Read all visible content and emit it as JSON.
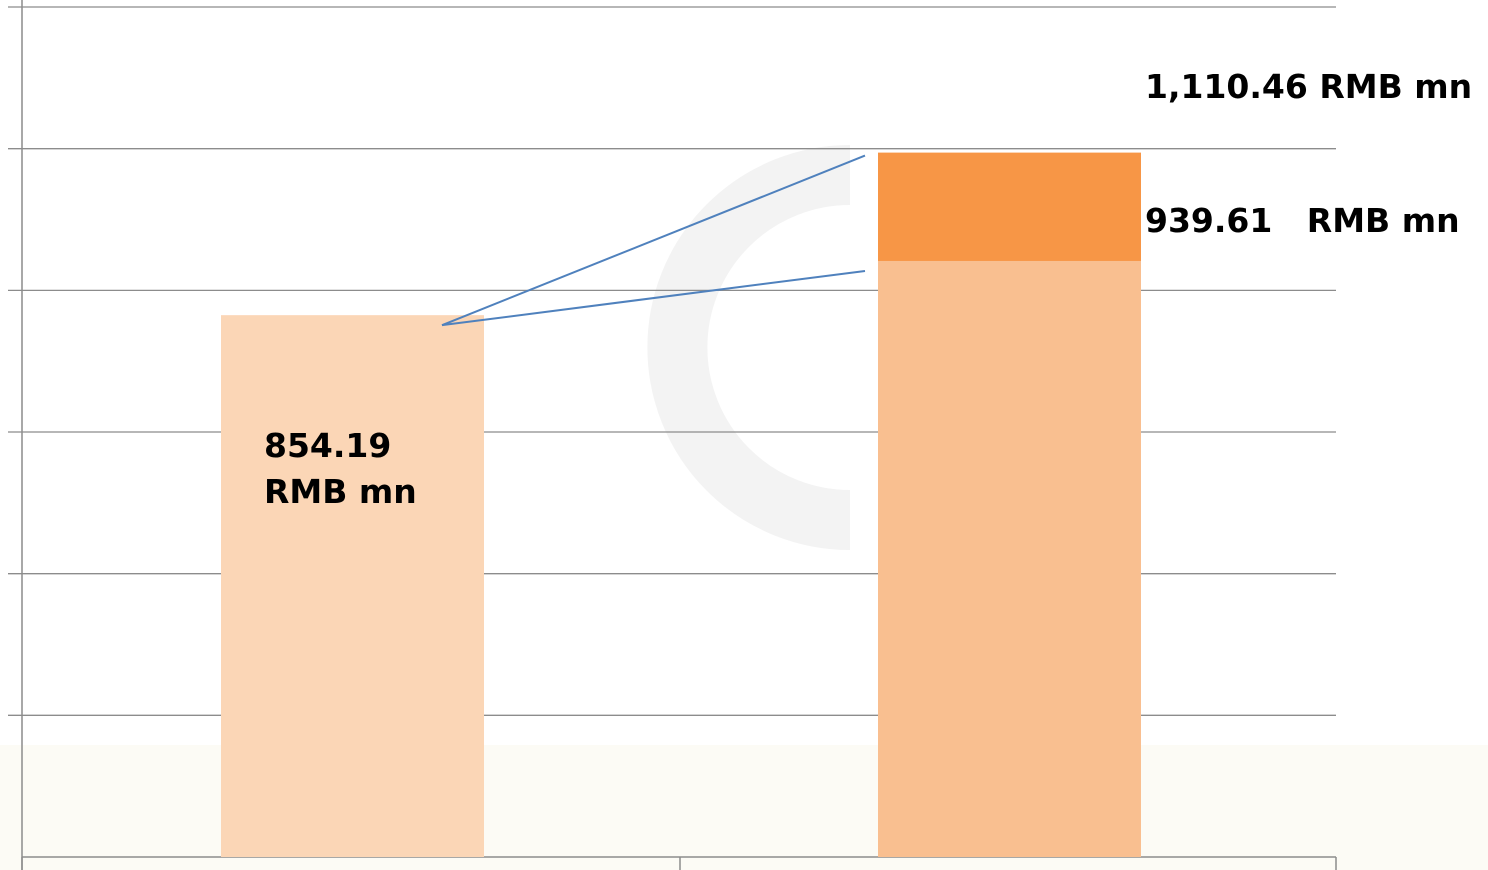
{
  "chart_data": {
    "type": "bar",
    "categories": [
      "",
      ""
    ],
    "series": [
      {
        "name": "",
        "values": [
          854.19,
          939.61
        ]
      },
      {
        "name": "",
        "values": [
          0,
          170.85
        ]
      }
    ],
    "totals": [
      854.19,
      1110.46
    ],
    "ylim": [
      0,
      1340
    ],
    "grid": true,
    "data_labels": {
      "bar1": [
        "854.19",
        "RMB mn"
      ],
      "bar2_base": "939.61   RMB mn",
      "bar2_total": "1,110.46 RMB mn"
    }
  },
  "colors": {
    "bar1": "#FBD6B6",
    "bar2_base": "#F9BF90",
    "bar2_top": "#F79646",
    "connector": "#4F81BD",
    "grid": "#8C8C8C",
    "watermark": "#F1F1F1"
  }
}
